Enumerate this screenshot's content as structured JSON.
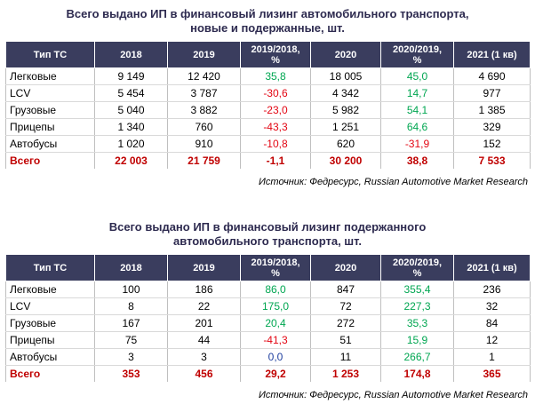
{
  "table1": {
    "title_line1": "Всего выдано ИП в финансовый лизинг автомобильного транспорта,",
    "title_line2": "новые и подержанные, шт.",
    "headers": [
      "Тип ТС",
      "2018",
      "2019",
      "2019/2018,\n%",
      "2020",
      "2020/2019,\n%",
      "2021 (1 кв)"
    ],
    "rows": [
      {
        "name": "Легковые",
        "v2018": "9 149",
        "v2019": "12 420",
        "g19": "35,8",
        "v2020": "18 005",
        "g20": "45,0",
        "v2021": "4 690"
      },
      {
        "name": "LCV",
        "v2018": "5 454",
        "v2019": "3 787",
        "g19": "-30,6",
        "v2020": "4 342",
        "g20": "14,7",
        "v2021": "977"
      },
      {
        "name": "Грузовые",
        "v2018": "5 040",
        "v2019": "3 882",
        "g19": "-23,0",
        "v2020": "5 982",
        "g20": "54,1",
        "v2021": "1 385"
      },
      {
        "name": "Прицепы",
        "v2018": "1 340",
        "v2019": "760",
        "g19": "-43,3",
        "v2020": "1 251",
        "g20": "64,6",
        "v2021": "329"
      },
      {
        "name": "Автобусы",
        "v2018": "1 020",
        "v2019": "910",
        "g19": "-10,8",
        "v2020": "620",
        "g20": "-31,9",
        "v2021": "152"
      }
    ],
    "total": {
      "name": "Всего",
      "v2018": "22 003",
      "v2019": "21 759",
      "g19": "-1,1",
      "v2020": "30 200",
      "g20": "38,8",
      "v2021": "7 533"
    },
    "source": "Источник: Федресурс, Russian Automotive Market Research"
  },
  "table2": {
    "title_line1": "Всего выдано ИП в финансовый лизинг подержанного",
    "title_line2": "автомобильного транспорта, шт.",
    "headers": [
      "Тип ТС",
      "2018",
      "2019",
      "2019/2018,\n%",
      "2020",
      "2020/2019,\n%",
      "2021 (1 кв)"
    ],
    "rows": [
      {
        "name": "Легковые",
        "v2018": "100",
        "v2019": "186",
        "g19": "86,0",
        "v2020": "847",
        "g20": "355,4",
        "v2021": "236"
      },
      {
        "name": "LCV",
        "v2018": "8",
        "v2019": "22",
        "g19": "175,0",
        "v2020": "72",
        "g20": "227,3",
        "v2021": "32"
      },
      {
        "name": "Грузовые",
        "v2018": "167",
        "v2019": "201",
        "g19": "20,4",
        "v2020": "272",
        "g20": "35,3",
        "v2021": "84"
      },
      {
        "name": "Прицепы",
        "v2018": "75",
        "v2019": "44",
        "g19": "-41,3",
        "v2020": "51",
        "g20": "15,9",
        "v2021": "12"
      },
      {
        "name": "Автобусы",
        "v2018": "3",
        "v2019": "3",
        "g19": "0,0",
        "v2020": "11",
        "g20": "266,7",
        "v2021": "1"
      }
    ],
    "total": {
      "name": "Всего",
      "v2018": "353",
      "v2019": "456",
      "g19": "29,2",
      "v2020": "1 253",
      "g20": "174,8",
      "v2021": "365"
    },
    "source": "Источник: Федресурс, Russian Automotive Market Research"
  },
  "colors": {
    "header_bg": "#3a3d5e",
    "positive": "#00a651",
    "negative": "#e30613",
    "zero": "#1f3f9f",
    "total": "#c00000"
  }
}
